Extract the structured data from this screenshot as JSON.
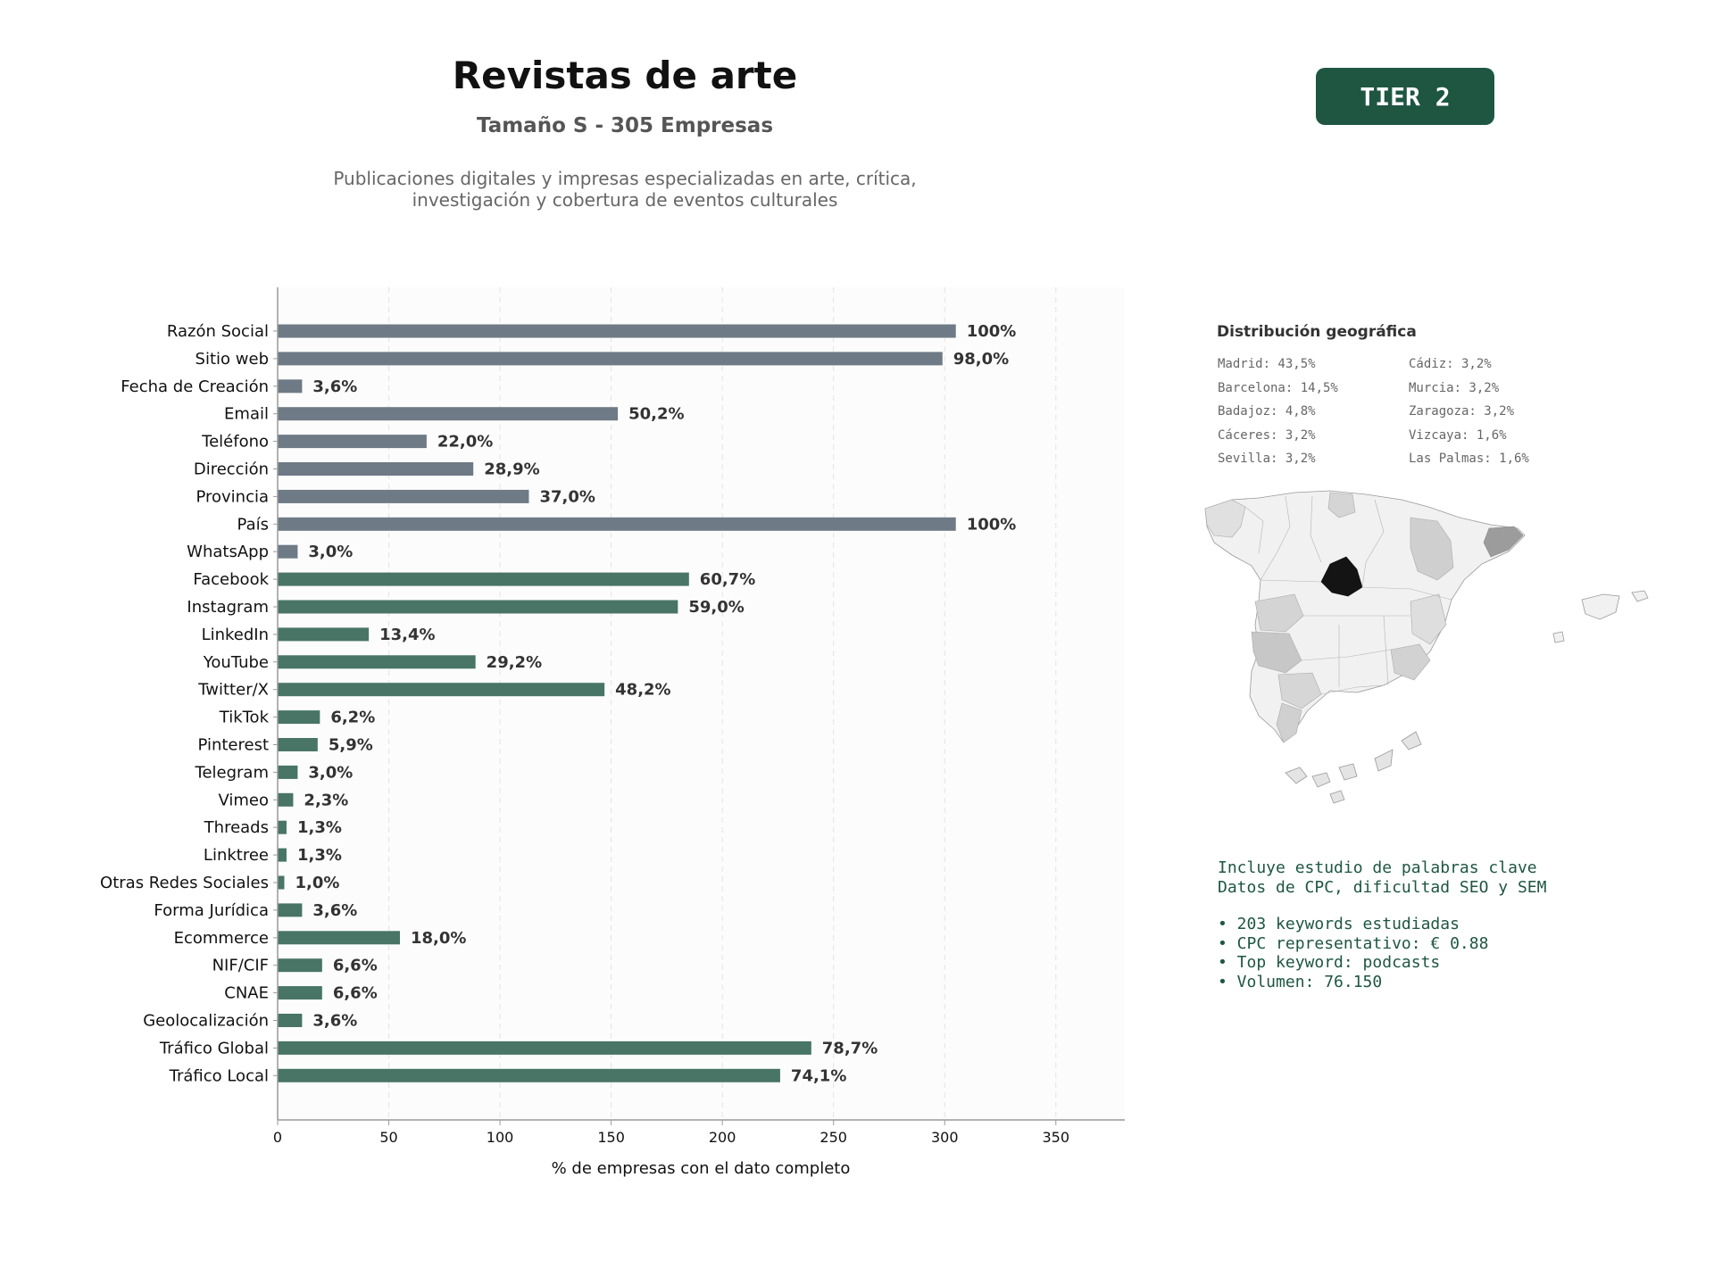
{
  "header": {
    "title": "Revistas de arte",
    "subtitle": "Tamaño S - 305 Empresas",
    "description_line1": "Publicaciones digitales y impresas especializadas en arte, crítica,",
    "description_line2": "investigación y cobertura de eventos culturales",
    "tier_badge": "TIER 2"
  },
  "colors": {
    "contact_bar": "#6e7a85",
    "social_bar": "#487565",
    "badge": "#1e5642",
    "seo_text": "#1e5642"
  },
  "chart_data": {
    "type": "bar",
    "orientation": "horizontal",
    "categories": [
      "Razón Social",
      "Sitio web",
      "Fecha de Creación",
      "Email",
      "Teléfono",
      "Dirección",
      "Provincia",
      "País",
      "WhatsApp",
      "Facebook",
      "Instagram",
      "LinkedIn",
      "YouTube",
      "Twitter/X",
      "TikTok",
      "Pinterest",
      "Telegram",
      "Vimeo",
      "Threads",
      "Linktree",
      "Otras Redes Sociales",
      "Forma Jurídica",
      "Ecommerce",
      "NIF/CIF",
      "CNAE",
      "Geolocalización",
      "Tráfico Global",
      "Tráfico Local"
    ],
    "values": [
      305,
      299,
      11,
      153,
      67,
      88,
      113,
      305,
      9,
      185,
      180,
      41,
      89,
      147,
      19,
      18,
      9,
      7,
      4,
      4,
      3,
      11,
      55,
      20,
      20,
      11,
      240,
      226
    ],
    "labels": [
      "100%",
      "98,0%",
      "3,6%",
      "50,2%",
      "22,0%",
      "28,9%",
      "37,0%",
      "100%",
      "3,0%",
      "60,7%",
      "59,0%",
      "13,4%",
      "29,2%",
      "48,2%",
      "6,2%",
      "5,9%",
      "3,0%",
      "2,3%",
      "1,3%",
      "1,3%",
      "1,0%",
      "3,6%",
      "18,0%",
      "6,6%",
      "6,6%",
      "3,6%",
      "78,7%",
      "74,1%"
    ],
    "groups": [
      "contact",
      "contact",
      "contact",
      "contact",
      "contact",
      "contact",
      "contact",
      "contact",
      "contact",
      "social",
      "social",
      "social",
      "social",
      "social",
      "social",
      "social",
      "social",
      "social",
      "social",
      "social",
      "social",
      "social",
      "social",
      "social",
      "social",
      "social",
      "social",
      "social"
    ],
    "xlabel": "% de empresas con el dato completo",
    "xlim": [
      0,
      381
    ],
    "xticks": [
      0,
      50,
      100,
      150,
      200,
      250,
      300,
      350
    ],
    "grid": "vertical dashed"
  },
  "geo": {
    "title": "Distribución geográfica",
    "items": [
      "Madrid: 43,5%",
      "Barcelona: 14,5%",
      "Badajoz: 4,8%",
      "Cáceres: 3,2%",
      "Sevilla: 3,2%",
      "Cádiz: 3,2%",
      "Murcia: 3,2%",
      "Zaragoza: 3,2%",
      "Vizcaya: 1,6%",
      "Las Palmas: 1,6%"
    ]
  },
  "seo": {
    "line1": "Incluye estudio de palabras clave",
    "line2": "Datos de CPC, dificultad SEO y SEM",
    "bullets": [
      "• 203 keywords estudiadas",
      "• CPC representativo: € 0.88",
      "• Top keyword: podcasts",
      "• Volumen: 76.150"
    ]
  }
}
